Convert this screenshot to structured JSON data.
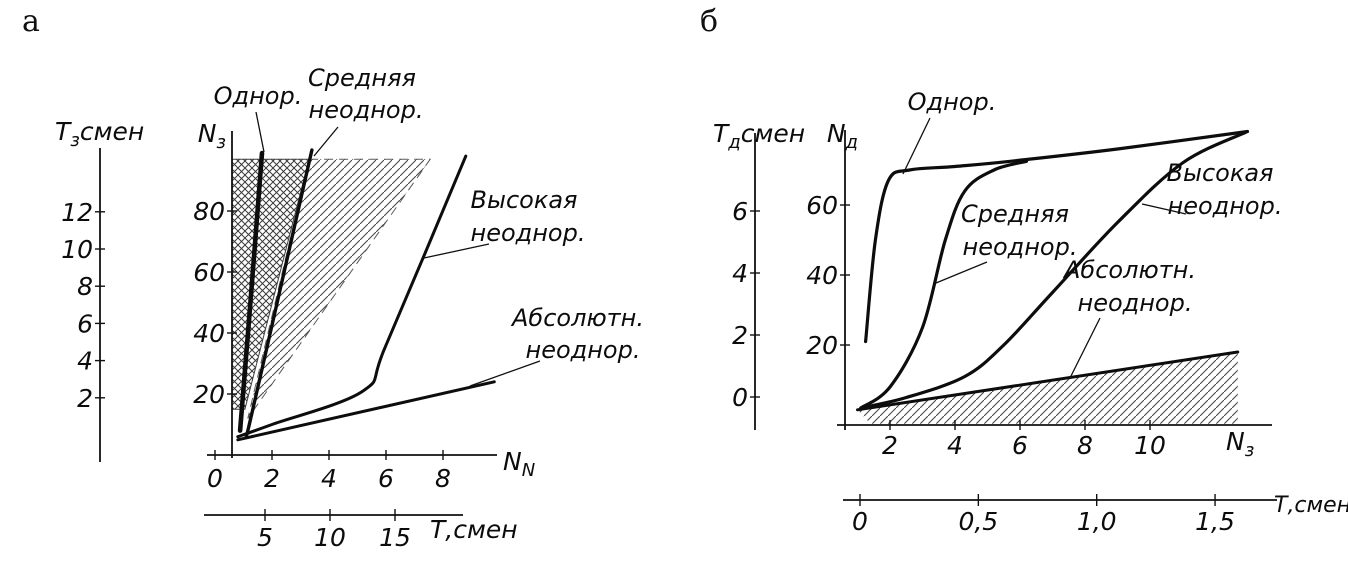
{
  "page": {
    "panel_a_label": "а",
    "panel_b_label": "б"
  },
  "chart_data": [
    {
      "id": "panel-a",
      "type": "line",
      "title": "",
      "axes": {
        "t_axis": {
          "label": "Т_{з}смен",
          "tick_labels": [
            "2",
            "4",
            "6",
            "8",
            "10",
            "12"
          ],
          "tick_values": [
            2,
            4,
            6,
            8,
            10,
            12
          ]
        },
        "n_axis": {
          "label": "N_{з}",
          "tick_labels": [
            "20",
            "40",
            "60",
            "80"
          ],
          "tick_values": [
            20,
            40,
            60,
            80
          ],
          "range": [
            0,
            105
          ]
        },
        "x_axis": {
          "label": "N_{N}",
          "tick_labels": [
            "0",
            "2",
            "4",
            "6",
            "8"
          ],
          "tick_values": [
            0,
            2,
            4,
            6,
            8
          ],
          "range": [
            0,
            9.9
          ]
        },
        "x2_axis": {
          "label": "Т,смен",
          "tick_labels": [
            "5",
            "10",
            "15"
          ],
          "tick_values": [
            5,
            10,
            15
          ]
        }
      },
      "series": [
        {
          "key": "odnor",
          "name": "Однор.",
          "points": [
            [
              0.88,
              8
            ],
            [
              1.2,
              45
            ],
            [
              1.65,
              99
            ]
          ]
        },
        {
          "key": "srednyaya",
          "name": "Средняя неоднор.",
          "points": [
            [
              1.1,
              6
            ],
            [
              1.45,
              20
            ],
            [
              3.4,
              100
            ]
          ]
        },
        {
          "key": "vysokaya",
          "name": "Высокая неоднор.",
          "points": [
            [
              0.8,
              6
            ],
            [
              2.0,
              10
            ],
            [
              5.2,
              21
            ],
            [
              6.0,
              36
            ],
            [
              8.8,
              98
            ]
          ]
        },
        {
          "key": "absolut",
          "name": "Абсолютн. неоднор.",
          "points": [
            [
              0.8,
              5
            ],
            [
              9.8,
              24
            ]
          ]
        }
      ],
      "regions": [
        {
          "key": "cross-hatch-region",
          "hatch": "cross",
          "points": [
            [
              0.6,
              97
            ],
            [
              3.3,
              97
            ],
            [
              1.05,
              15
            ],
            [
              0.6,
              15
            ]
          ]
        },
        {
          "key": "diag-hatch-region",
          "hatch": "diag",
          "points": [
            [
              3.3,
              97
            ],
            [
              7.55,
              97
            ],
            [
              1.15,
              12
            ]
          ]
        }
      ],
      "annotations": [
        {
          "lines": [
            "Однор."
          ]
        },
        {
          "lines": [
            "Средняя",
            "неоднор."
          ]
        },
        {
          "lines": [
            "Высокая",
            "неоднор."
          ]
        },
        {
          "lines": [
            "Абсолютн.",
            "неоднор."
          ]
        }
      ]
    },
    {
      "id": "panel-b",
      "type": "line",
      "title": "",
      "axes": {
        "t_axis": {
          "label": "Т_{д}смен",
          "tick_labels": [
            "0",
            "2",
            "4",
            "6"
          ],
          "tick_values": [
            0,
            2,
            4,
            6
          ]
        },
        "n_axis": {
          "label": "N_{д}",
          "tick_labels": [
            "20",
            "40",
            "60"
          ],
          "tick_values": [
            20,
            40,
            60
          ],
          "range": [
            0,
            82
          ]
        },
        "x_axis": {
          "label": "N_{з}",
          "tick_labels": [
            "2",
            "4",
            "6",
            "8",
            "10"
          ],
          "tick_values": [
            2,
            4,
            6,
            8,
            10
          ],
          "range": [
            0,
            13
          ]
        },
        "x2_axis": {
          "label": "Т,смен",
          "tick_labels": [
            "0",
            "0,5",
            "1,0",
            "1,5"
          ],
          "tick_values": [
            0,
            0.5,
            1.0,
            1.5
          ]
        }
      },
      "series": [
        {
          "key": "odnor",
          "name": "Однор.",
          "points": [
            [
              1.25,
              21
            ],
            [
              1.55,
              50
            ],
            [
              1.95,
              67
            ],
            [
              2.6,
              70
            ],
            [
              4.0,
              71
            ],
            [
              5.7,
              72.5
            ],
            [
              9.0,
              76
            ],
            [
              13.0,
              81
            ]
          ]
        },
        {
          "key": "srednyaya",
          "name": "Средняя неоднор.",
          "points": [
            [
              1.1,
              2
            ],
            [
              2.0,
              8
            ],
            [
              3.0,
              25
            ],
            [
              3.7,
              50
            ],
            [
              4.3,
              64
            ],
            [
              5.2,
              70
            ],
            [
              6.2,
              72.5
            ]
          ]
        },
        {
          "key": "vysokaya",
          "name": "Высокая неоднор.",
          "points": [
            [
              1.1,
              2
            ],
            [
              2.5,
              5
            ],
            [
              4.3,
              11
            ],
            [
              5.5,
              20
            ],
            [
              7.0,
              35
            ],
            [
              9.0,
              55
            ],
            [
              11.0,
              72
            ],
            [
              12.95,
              80.8
            ]
          ]
        },
        {
          "key": "absolut",
          "name": "Абсолютн. неоднор.",
          "points": [
            [
              1.0,
              1.5
            ],
            [
              12.7,
              18
            ]
          ]
        }
      ],
      "regions": [
        {
          "key": "diag-hatch-region",
          "hatch": "diag",
          "points": [
            [
              1.0,
              1.5
            ],
            [
              12.7,
              18
            ],
            [
              12.7,
              -2.5
            ],
            [
              1.4,
              -2.5
            ]
          ]
        }
      ],
      "annotations": [
        {
          "lines": [
            "Однор."
          ]
        },
        {
          "lines": [
            "Средняя",
            "неоднор."
          ]
        },
        {
          "lines": [
            "Высокая",
            "неоднор."
          ]
        },
        {
          "lines": [
            "Абсолютн.",
            "неоднор."
          ]
        }
      ]
    }
  ]
}
